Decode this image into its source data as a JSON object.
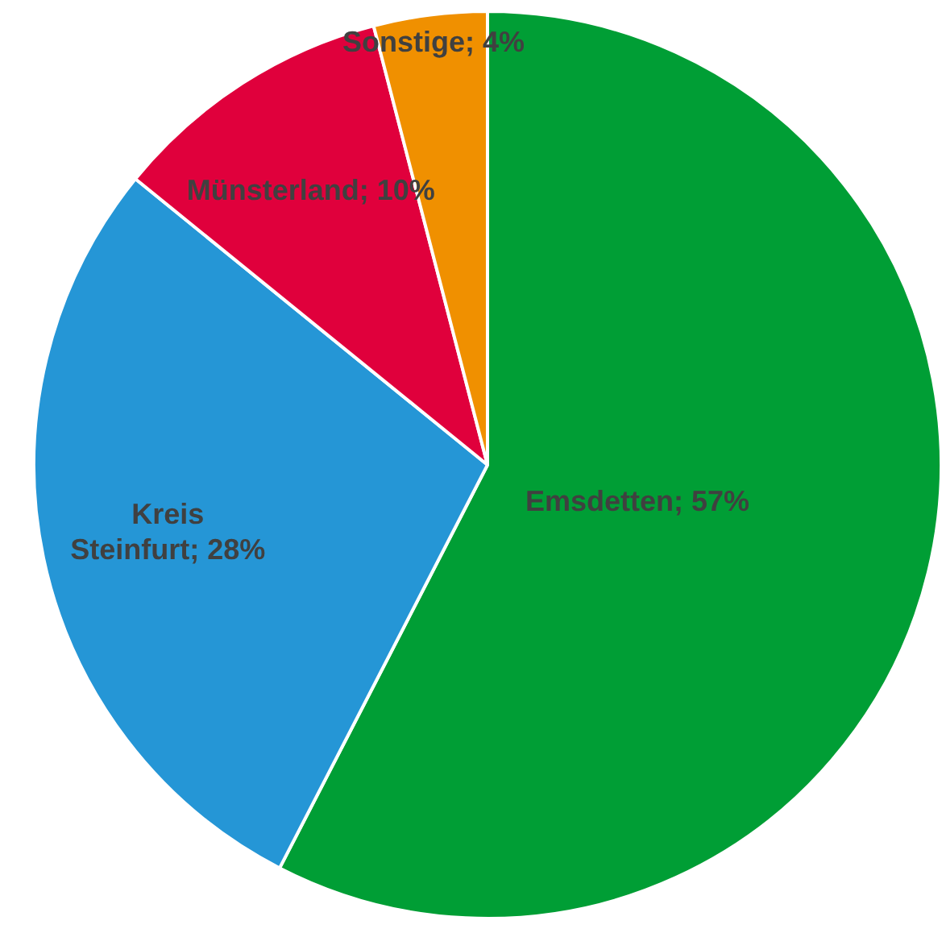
{
  "chart_data": {
    "type": "pie",
    "categories": [
      "Emsdetten",
      "Kreis Steinfurt",
      "Münsterland",
      "Sonstige"
    ],
    "values": [
      57,
      28,
      10,
      4
    ],
    "colors": [
      "#009e35",
      "#2596d6",
      "#e0003c",
      "#f09000"
    ],
    "value_labels": [
      "57%",
      "28%",
      "10%",
      "4%"
    ],
    "legend": false
  }
}
